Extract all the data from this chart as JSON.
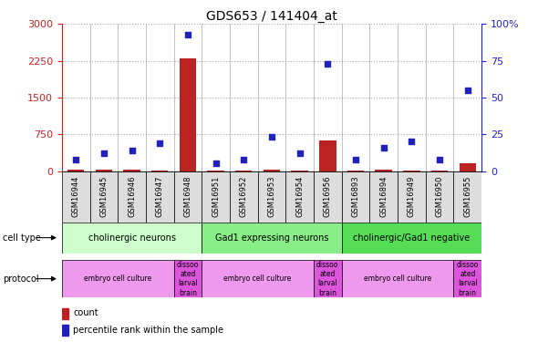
{
  "title": "GDS653 / 141404_at",
  "samples": [
    "GSM16944",
    "GSM16945",
    "GSM16946",
    "GSM16947",
    "GSM16948",
    "GSM16951",
    "GSM16952",
    "GSM16953",
    "GSM16954",
    "GSM16956",
    "GSM16893",
    "GSM16894",
    "GSM16949",
    "GSM16950",
    "GSM16955"
  ],
  "counts": [
    20,
    30,
    25,
    15,
    2300,
    10,
    15,
    20,
    18,
    620,
    15,
    20,
    15,
    12,
    160
  ],
  "percentile_ranks": [
    8,
    12,
    14,
    19,
    93,
    5,
    8,
    23,
    12,
    73,
    8,
    16,
    20,
    8,
    55
  ],
  "cell_type_groups": [
    {
      "label": "cholinergic neurons",
      "start": 0,
      "end": 4,
      "color": "#ccffcc"
    },
    {
      "label": "Gad1 expressing neurons",
      "start": 5,
      "end": 9,
      "color": "#88ee88"
    },
    {
      "label": "cholinergic/Gad1 negative",
      "start": 10,
      "end": 14,
      "color": "#55dd55"
    }
  ],
  "protocol_groups": [
    {
      "label": "embryo cell culture",
      "start": 0,
      "end": 3,
      "color": "#ee99ee"
    },
    {
      "label": "dissoo\nated\nlarval\nbrain",
      "start": 4,
      "end": 4,
      "color": "#dd55dd"
    },
    {
      "label": "embryo cell culture",
      "start": 5,
      "end": 8,
      "color": "#ee99ee"
    },
    {
      "label": "dissoo\nated\nlarval\nbrain",
      "start": 9,
      "end": 9,
      "color": "#dd55dd"
    },
    {
      "label": "embryo cell culture",
      "start": 10,
      "end": 13,
      "color": "#ee99ee"
    },
    {
      "label": "dissoo\nated\nlarval\nbrain",
      "start": 14,
      "end": 14,
      "color": "#dd55dd"
    }
  ],
  "ylim_left": [
    0,
    3000
  ],
  "ylim_right": [
    0,
    100
  ],
  "yticks_left": [
    0,
    750,
    1500,
    2250,
    3000
  ],
  "yticks_right": [
    0,
    25,
    50,
    75,
    100
  ],
  "bar_color": "#bb2222",
  "dot_color": "#2222bb",
  "grid_color": "#aaaaaa"
}
